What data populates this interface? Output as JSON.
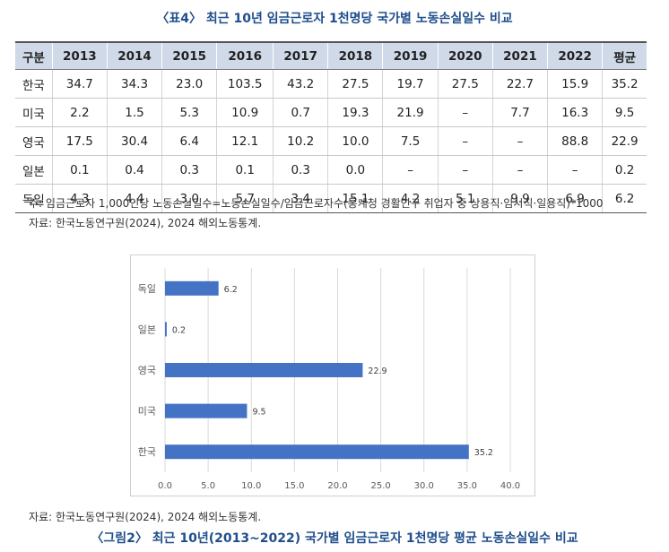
{
  "table": {
    "title": "〈표4〉 최근 10년 임금근로자 1천명당 국가별 노동손실일수 비교",
    "headers": [
      "구분",
      "2013",
      "2014",
      "2015",
      "2016",
      "2017",
      "2018",
      "2019",
      "2020",
      "2021",
      "2022",
      "평균"
    ],
    "rows": [
      [
        "한국",
        "34.7",
        "34.3",
        "23.0",
        "103.5",
        "43.2",
        "27.5",
        "19.7",
        "27.5",
        "22.7",
        "15.9",
        "35.2"
      ],
      [
        "미국",
        "2.2",
        "1.5",
        "5.3",
        "10.9",
        "0.7",
        "19.3",
        "21.9",
        "–",
        "7.7",
        "16.3",
        "9.5"
      ],
      [
        "영국",
        "17.5",
        "30.4",
        "6.4",
        "12.1",
        "10.2",
        "10.0",
        "7.5",
        "–",
        "–",
        "88.8",
        "22.9"
      ],
      [
        "일본",
        "0.1",
        "0.4",
        "0.3",
        "0.1",
        "0.3",
        "0.0",
        "–",
        "–",
        "–",
        "–",
        "0.2"
      ],
      [
        "독일",
        "4.3",
        "4.4",
        "3.0",
        "5.7",
        "3.4",
        "15.1",
        "4.2",
        "5.1",
        "9.9",
        "6.9",
        "6.2"
      ]
    ],
    "note": "주: 임금근로자 1,000인당 노동손실일수=노동손실일수/임금근로자수(통계청 경활인구 취업자 중 상용직·임시직·일용직)*1000",
    "source": "자료: 한국노동연구원(2024), 2024 해외노동통계."
  },
  "figure": {
    "source": "자료: 한국노동연구원(2024), 2024 해외노동통계.",
    "title": "〈그림2〉 최근 10년(2013~2022) 국가별 임금근로자 1천명당 평균 노동손실일수 비교"
  },
  "chart_data": {
    "type": "bar",
    "orientation": "horizontal",
    "categories": [
      "독일",
      "일본",
      "영국",
      "미국",
      "한국"
    ],
    "values": [
      6.2,
      0.2,
      22.9,
      9.5,
      35.2
    ],
    "xlim": [
      0,
      40
    ],
    "xticks": [
      "0.0",
      "5.0",
      "10.0",
      "15.0",
      "20.0",
      "25.0",
      "30.0",
      "35.0",
      "40.0"
    ],
    "bar_color": "#4472c4",
    "grid": true
  }
}
